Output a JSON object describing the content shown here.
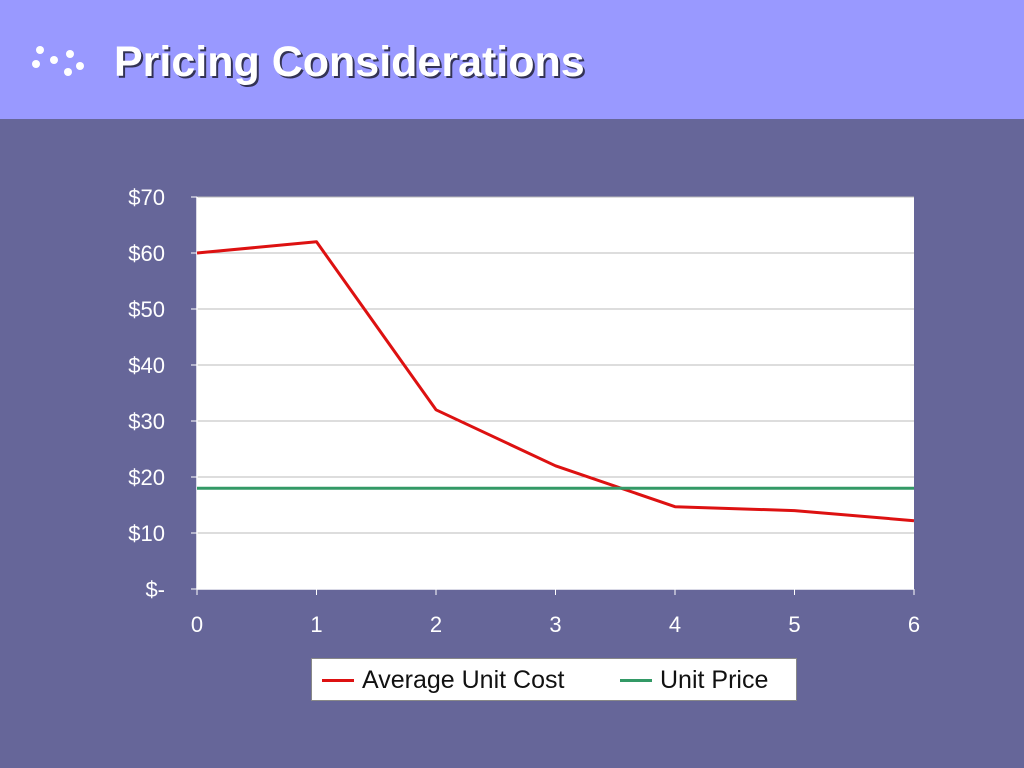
{
  "header": {
    "title": "Pricing Considerations",
    "icon": "dots-bullet-icon"
  },
  "colors": {
    "header_bg": "#9999ff",
    "slide_bg": "#666699",
    "cost": "#dd1111",
    "price": "#339966"
  },
  "chart_data": {
    "type": "line",
    "title": "",
    "xlabel": "",
    "ylabel": "",
    "x": [
      0,
      1,
      2,
      3,
      4,
      5,
      6
    ],
    "x_tick_labels": [
      "0",
      "1",
      "2",
      "3",
      "4",
      "5",
      "6"
    ],
    "y_tick_values": [
      0,
      10,
      20,
      30,
      40,
      50,
      60,
      70
    ],
    "y_tick_labels": [
      "$-",
      "$10",
      "$20",
      "$30",
      "$40",
      "$50",
      "$60",
      "$70"
    ],
    "ylim": [
      0,
      70
    ],
    "xlim": [
      0,
      6
    ],
    "grid": true,
    "legend": "bottom",
    "series": [
      {
        "name": "Average Unit Cost",
        "color": "#dd1111",
        "values": [
          60,
          62,
          32,
          22,
          14.7,
          14,
          12.2
        ]
      },
      {
        "name": "Unit Price",
        "color": "#339966",
        "values": [
          18,
          18,
          18,
          18,
          18,
          18,
          18
        ]
      }
    ]
  }
}
